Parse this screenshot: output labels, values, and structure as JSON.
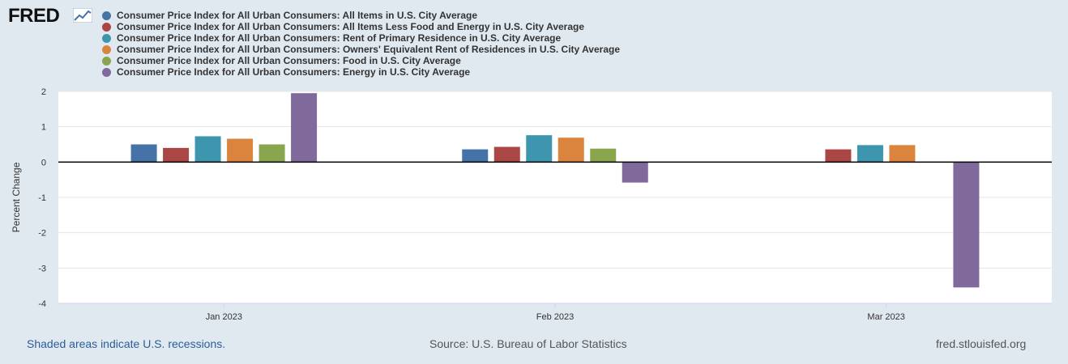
{
  "brand": {
    "name": "FRED"
  },
  "colors": {
    "background": "#e1e9f0",
    "plot_background": "#ffffff",
    "link": "#2b5d99"
  },
  "chart_data": {
    "type": "bar",
    "categories": [
      "Jan 2023",
      "Feb 2023",
      "Mar 2023"
    ],
    "ylabel": "Percent Change",
    "xlabel": "",
    "ylim": [
      -4,
      2
    ],
    "yticks": [
      2,
      1,
      0,
      -1,
      -2,
      -3,
      -4
    ],
    "grid": true,
    "legend_position": "top-left",
    "series": [
      {
        "name": "Consumer Price Index for All Urban Consumers: All Items in U.S. City Average",
        "color": "#4572a7",
        "values": [
          0.5,
          0.36,
          null
        ]
      },
      {
        "name": "Consumer Price Index for All Urban Consumers: All Items Less Food and Energy in U.S. City Average",
        "color": "#aa4643",
        "values": [
          0.4,
          0.43,
          0.36
        ]
      },
      {
        "name": "Consumer Price Index for All Urban Consumers: Rent of Primary Residence in U.S. City Average",
        "color": "#3d96ae",
        "values": [
          0.73,
          0.76,
          0.48
        ]
      },
      {
        "name": "Consumer Price Index for All Urban Consumers: Owners' Equivalent Rent of Residences in U.S. City Average",
        "color": "#db843d",
        "values": [
          0.66,
          0.69,
          0.48
        ]
      },
      {
        "name": "Consumer Price Index for All Urban Consumers: Food in U.S. City Average",
        "color": "#89a54e",
        "values": [
          0.5,
          0.38,
          null
        ]
      },
      {
        "name": "Consumer Price Index for All Urban Consumers: Energy in U.S. City Average",
        "color": "#80699b",
        "values": [
          1.95,
          -0.58,
          -3.55
        ]
      }
    ]
  },
  "footer": {
    "recession_note": "Shaded areas indicate U.S. recessions.",
    "source": "Source: U.S. Bureau of Labor Statistics",
    "site": "fred.stlouisfed.org"
  }
}
